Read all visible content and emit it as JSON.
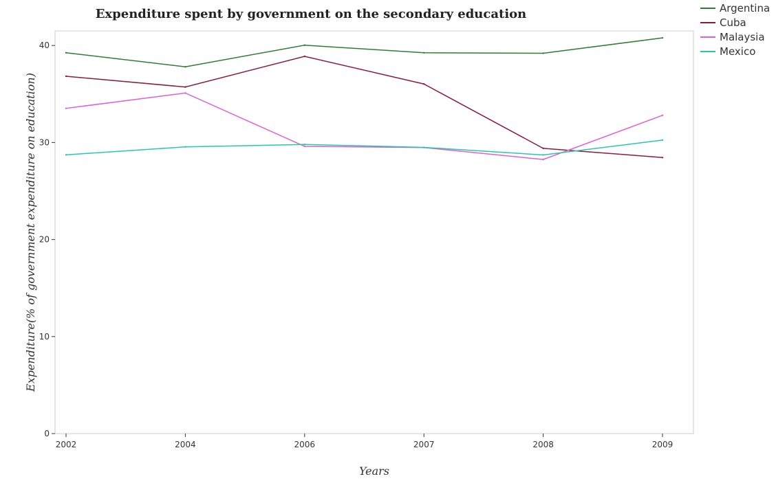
{
  "chart_data": {
    "type": "line",
    "title": "Expenditure spent by government on the secondary education",
    "xlabel": "Years",
    "ylabel": "Expenditure(% of government expenditure on education)",
    "categories": [
      "2002",
      "2004",
      "2006",
      "2007",
      "2008",
      "2009"
    ],
    "yticks": [
      "0",
      "10",
      "20",
      "30",
      "40"
    ],
    "ylim": [
      0,
      41.5
    ],
    "grid": false,
    "legend_position": "top-right",
    "series": [
      {
        "name": "Argentina",
        "color": "#2e7d32",
        "values": [
          39.25,
          37.8,
          40.03,
          39.25,
          39.2,
          40.78
        ]
      },
      {
        "name": "Cuba",
        "color": "#8b1a3a",
        "values": [
          36.83,
          35.72,
          38.88,
          36.03,
          29.4,
          28.45
        ]
      },
      {
        "name": "Malaysia",
        "color": "#e05fd0",
        "values": [
          33.52,
          35.1,
          29.6,
          29.48,
          28.25,
          32.8
        ]
      },
      {
        "name": "Mexico",
        "color": "#26c6b0",
        "values": [
          28.73,
          29.55,
          29.8,
          29.5,
          28.72,
          30.25
        ]
      }
    ]
  }
}
